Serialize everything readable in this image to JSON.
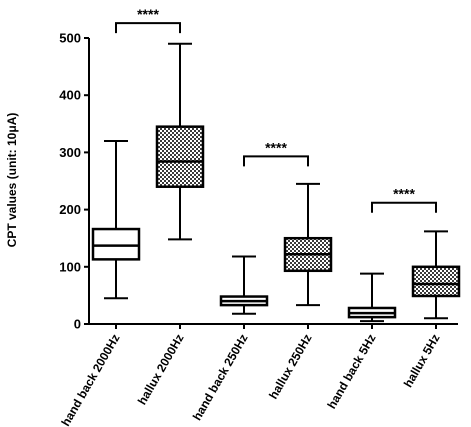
{
  "chart_data": {
    "type": "boxplot",
    "ylabel": "CPT values  (unit: 10μA)",
    "ylim": [
      0,
      500
    ],
    "yticks": [
      0,
      100,
      200,
      300,
      400,
      500
    ],
    "categories": [
      "hand back 2000Hz",
      "hallux 2000Hz",
      "hand back 250Hz",
      "hallux 250Hz",
      "hand back 5Hz",
      "hallux 5Hz"
    ],
    "boxes": [
      {
        "min": 45,
        "q1": 113,
        "median": 137,
        "q3": 166,
        "max": 320,
        "pattern": "plain"
      },
      {
        "min": 148,
        "q1": 240,
        "median": 284,
        "q3": 345,
        "max": 490,
        "pattern": "checkered"
      },
      {
        "min": 18,
        "q1": 33,
        "median": 40,
        "q3": 48,
        "max": 118,
        "pattern": "plain"
      },
      {
        "min": 33,
        "q1": 93,
        "median": 122,
        "q3": 150,
        "max": 245,
        "pattern": "checkered"
      },
      {
        "min": 5,
        "q1": 12,
        "median": 19,
        "q3": 28,
        "max": 88,
        "pattern": "plain"
      },
      {
        "min": 10,
        "q1": 49,
        "median": 70,
        "q3": 100,
        "max": 162,
        "pattern": "checkered"
      }
    ],
    "significance": [
      {
        "from": 0,
        "to": 1,
        "label": "****",
        "y": 526
      },
      {
        "from": 2,
        "to": 3,
        "label": "****",
        "y": 293
      },
      {
        "from": 4,
        "to": 5,
        "label": "****",
        "y": 212
      }
    ],
    "grid": false,
    "legend": "none"
  }
}
